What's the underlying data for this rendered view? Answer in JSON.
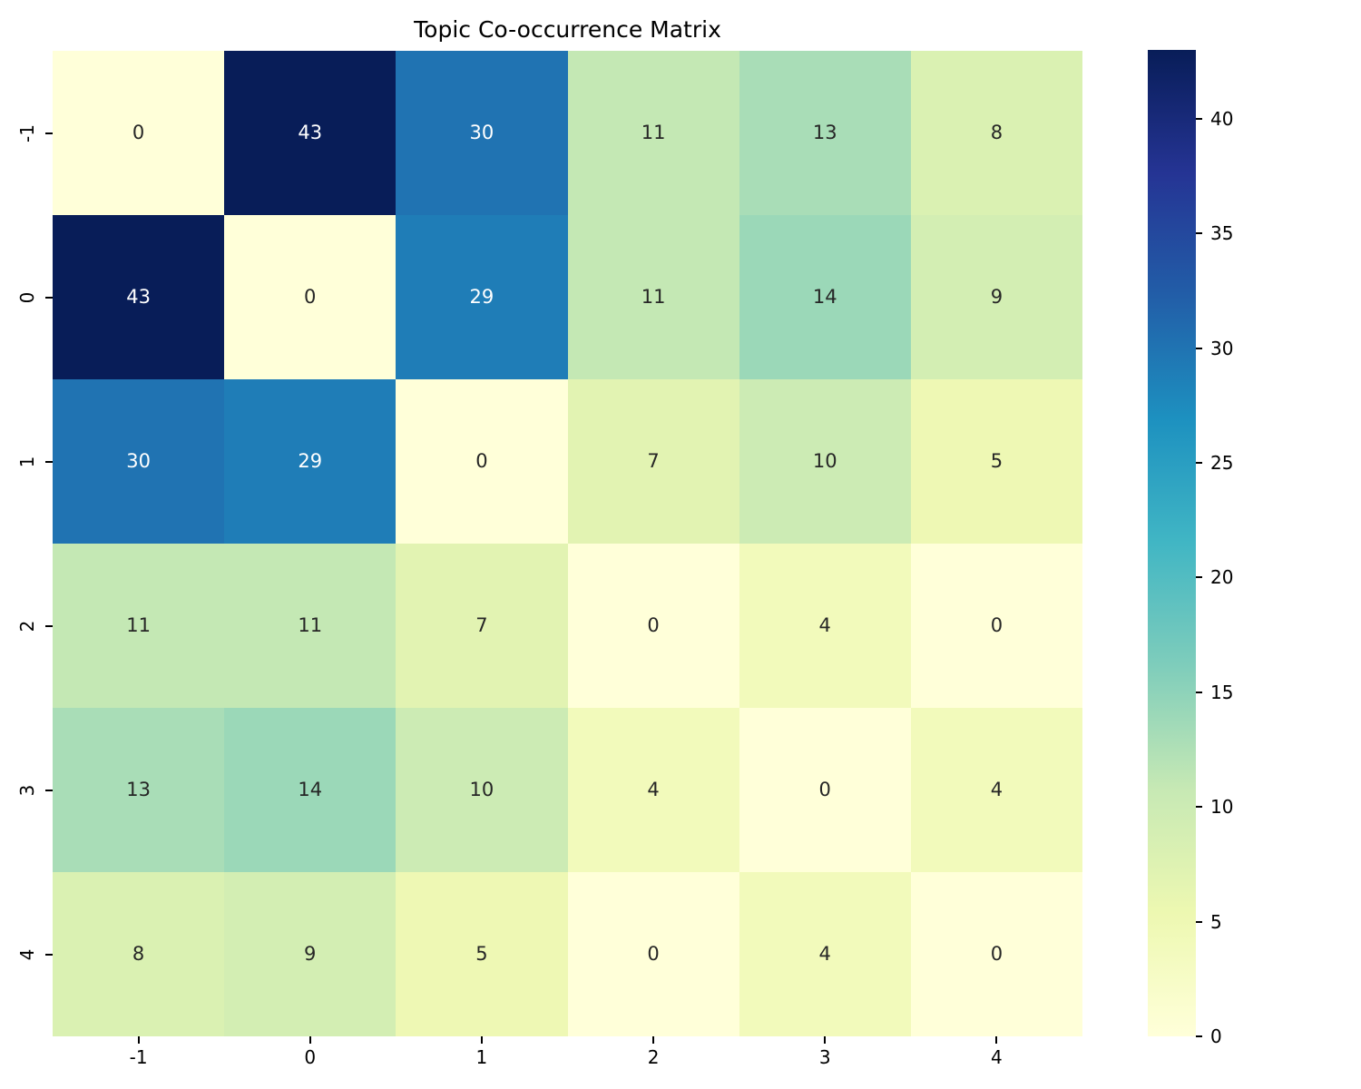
{
  "title": "Topic Co-occurrence Matrix",
  "chart_data": {
    "type": "heatmap",
    "title": "Topic Co-occurrence Matrix",
    "x_labels": [
      "-1",
      "0",
      "1",
      "2",
      "3",
      "4"
    ],
    "y_labels": [
      "-1",
      "0",
      "1",
      "2",
      "3",
      "4"
    ],
    "values": [
      [
        0,
        43,
        30,
        11,
        13,
        8
      ],
      [
        43,
        0,
        29,
        11,
        14,
        9
      ],
      [
        30,
        29,
        0,
        7,
        10,
        5
      ],
      [
        11,
        11,
        7,
        0,
        4,
        0
      ],
      [
        13,
        14,
        10,
        4,
        0,
        4
      ],
      [
        8,
        9,
        5,
        0,
        4,
        0
      ]
    ],
    "vmin": 0,
    "vmax": 43,
    "colormap": "YlGnBu",
    "colormap_stops": [
      "#ffffd9",
      "#edf8b1",
      "#c7e9b4",
      "#7fcdbb",
      "#41b6c4",
      "#1d91c0",
      "#225ea8",
      "#253494",
      "#081d58"
    ],
    "colorbar_ticks": [
      0,
      5,
      10,
      15,
      20,
      25,
      30,
      35,
      40
    ],
    "annotation_dark_color": "#262626",
    "annotation_light_color": "#ffffff",
    "grid_on": false,
    "legend_position": "right-colorbar"
  }
}
